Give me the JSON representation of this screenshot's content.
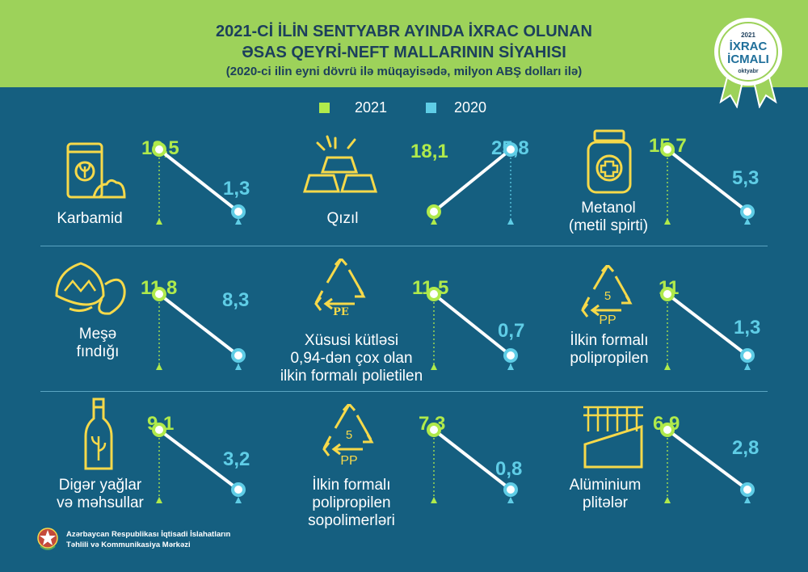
{
  "header": {
    "title_line1": "2021-Cİ İLİN SENTYABR AYINDA İXRAC OLUNAN",
    "title_line2": "ƏSAS QEYRİ-NEFT MALLARININ SİYAHISI",
    "subtitle": "(2020-ci ilin eyni dövrü ilə müqayisədə, milyon ABŞ dolları ilə)"
  },
  "badge": {
    "year": "2021",
    "line1": "İXRAC",
    "line2": "İCMALI",
    "month": "oktyabr"
  },
  "legend": [
    {
      "label": "2021",
      "color": "#b0ea4b"
    },
    {
      "label": "2020",
      "color": "#5fcde6"
    }
  ],
  "colors": {
    "y2021": "#b0ea4b",
    "y2020": "#5fcde6",
    "background": "#155f80",
    "header": "#9dd25a",
    "title": "#1c3f5c"
  },
  "chart_data": {
    "type": "slope",
    "series": [
      {
        "name": "2021"
      },
      {
        "name": "2020"
      }
    ],
    "items": [
      {
        "label": "Karbamid",
        "v2021": 18.5,
        "v2020": 1.3,
        "v2021_text": "18,5",
        "v2020_text": "1,3",
        "icon": "fertilizer-bag-icon"
      },
      {
        "label": "Qızıl",
        "v2021": 18.1,
        "v2020": 25.8,
        "v2021_text": "18,1",
        "v2020_text": "25,8",
        "icon": "gold-bars-icon"
      },
      {
        "label": "Metanol\n(metil spirti)",
        "v2021": 15.7,
        "v2020": 5.3,
        "v2021_text": "15,7",
        "v2020_text": "5,3",
        "icon": "medicine-bottle-icon"
      },
      {
        "label": "Meşə\nfındığı",
        "v2021": 11.8,
        "v2020": 8.3,
        "v2021_text": "11,8",
        "v2020_text": "8,3",
        "icon": "hazelnut-icon"
      },
      {
        "label": "Xüsusi kütləsi\n0,94-dən çox olan\nilkin formalı polietilen",
        "v2021": 11.5,
        "v2020": 0.7,
        "v2021_text": "11,5",
        "v2020_text": "0,7",
        "icon": "recycle-pe-icon",
        "icon_text": "PE"
      },
      {
        "label": "İlkin formalı\npolipropilen",
        "v2021": 11,
        "v2020": 1.3,
        "v2021_text": "11",
        "v2020_text": "1,3",
        "icon": "recycle-pp-icon",
        "icon_num": "5",
        "icon_text": "PP"
      },
      {
        "label": "Digər yağlar\nvə məhsullar",
        "v2021": 9.1,
        "v2020": 3.2,
        "v2021_text": "9,1",
        "v2020_text": "3,2",
        "icon": "oil-bottle-icon"
      },
      {
        "label": "İlkin formalı\npolipropilen\nsopolimerləri",
        "v2021": 7.3,
        "v2020": 0.8,
        "v2021_text": "7,3",
        "v2020_text": "0,8",
        "icon": "recycle-pp-icon",
        "icon_num": "5",
        "icon_text": "PP"
      },
      {
        "label": "Alüminium\nplitələr",
        "v2021": 6.9,
        "v2020": 2.8,
        "v2021_text": "6,9",
        "v2020_text": "2,8",
        "icon": "aluminium-sheet-icon"
      }
    ]
  },
  "footer": {
    "line1": "Azərbaycan Respublikası İqtisadi İslahatların",
    "line2": "Təhlili və Kommunikasiya Mərkəzi"
  }
}
